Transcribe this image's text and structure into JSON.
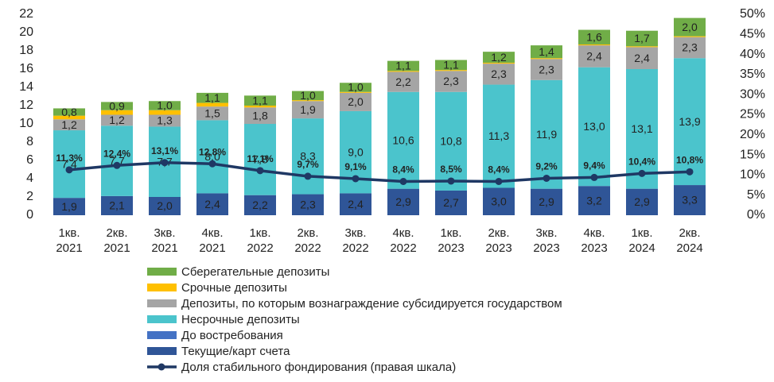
{
  "chart_data": {
    "type": "bar",
    "stacked": true,
    "categories": [
      "1кв. 2021",
      "2кв. 2021",
      "3кв. 2021",
      "4кв. 2021",
      "1кв. 2022",
      "2кв. 2022",
      "3кв. 2022",
      "4кв. 2022",
      "1кв. 2023",
      "2кв. 2023",
      "3кв. 2023",
      "4кв. 2023",
      "1кв. 2024",
      "2кв. 2024"
    ],
    "series": [
      {
        "name": "Текущие/карт счета",
        "color": "#2f5597",
        "values": [
          1.9,
          2.1,
          2.0,
          2.4,
          2.2,
          2.3,
          2.4,
          2.9,
          2.7,
          3.0,
          2.9,
          3.2,
          2.9,
          3.3
        ],
        "value_labels": [
          "1,9",
          "2,1",
          "2,0",
          "2,4",
          "2,2",
          "2,3",
          "2,4",
          "2,9",
          "2,7",
          "3,0",
          "2,9",
          "3,2",
          "2,9",
          "3,3"
        ]
      },
      {
        "name": "До востребования",
        "color": "#4472c4",
        "values": [
          0,
          0,
          0,
          0,
          0,
          0,
          0,
          0,
          0,
          0,
          0,
          0,
          0,
          0
        ]
      },
      {
        "name": "Несрочные депозиты",
        "color": "#4bc4cc",
        "values": [
          7.4,
          7.7,
          7.7,
          8.0,
          7.8,
          8.3,
          9.0,
          10.6,
          10.8,
          11.3,
          11.9,
          13.0,
          13.1,
          13.9
        ],
        "value_labels": [
          "7,4",
          "7,7",
          "7,7",
          "8,0",
          "7,8",
          "8,3",
          "9,0",
          "10,6",
          "10,8",
          "11,3",
          "11,9",
          "13,0",
          "13,1",
          "13,9"
        ]
      },
      {
        "name": "Депозиты, по которым вознаграждение субсидируется государством",
        "color": "#a5a5a5",
        "values": [
          1.2,
          1.2,
          1.3,
          1.5,
          1.8,
          1.9,
          2.0,
          2.2,
          2.3,
          2.3,
          2.3,
          2.4,
          2.4,
          2.3
        ],
        "value_labels": [
          "1,2",
          "1,2",
          "1,3",
          "1,5",
          "1,8",
          "1,9",
          "2,0",
          "2,2",
          "2,3",
          "2,3",
          "2,3",
          "2,4",
          "2,4",
          "2,3"
        ]
      },
      {
        "name": "Срочные депозиты",
        "color": "#ffc000",
        "values": [
          0.4,
          0.5,
          0.5,
          0.4,
          0.2,
          0.1,
          0.1,
          0.1,
          0.1,
          0.1,
          0.1,
          0.1,
          0.1,
          0.1
        ]
      },
      {
        "name": "Сберегательные депозиты",
        "color": "#70ad47",
        "values": [
          0.8,
          0.9,
          1.0,
          1.1,
          1.1,
          1.0,
          1.0,
          1.1,
          1.1,
          1.2,
          1.4,
          1.6,
          1.7,
          2.0
        ],
        "value_labels": [
          "0,8",
          "0,9",
          "1,0",
          "1,1",
          "1,1",
          "1,0",
          "1,0",
          "1,1",
          "1,1",
          "1,2",
          "1,4",
          "1,6",
          "1,7",
          "2,0"
        ]
      },
      {
        "name": "Доля стабильного фондирования (правая шкала)",
        "type": "line",
        "axis": "y2",
        "color": "#1f3864",
        "values": [
          11.3,
          12.4,
          13.1,
          12.8,
          11.1,
          9.7,
          9.1,
          8.4,
          8.5,
          8.4,
          9.2,
          9.4,
          10.4,
          10.8
        ],
        "value_labels": [
          "11,3%",
          "12,4%",
          "13,1%",
          "12,8%",
          "11,1%",
          "9,7%",
          "9,1%",
          "8,4%",
          "8,5%",
          "8,4%",
          "9,2%",
          "9,4%",
          "10,4%",
          "10,8%"
        ]
      }
    ],
    "ylim": [
      0,
      22
    ],
    "yticks": [
      0,
      2,
      4,
      6,
      8,
      10,
      12,
      14,
      16,
      18,
      20,
      22
    ],
    "y2lim": [
      0,
      50
    ],
    "y2ticks": [
      {
        "value": 0,
        "label": "0%"
      },
      {
        "value": 5,
        "label": "5%"
      },
      {
        "value": 10,
        "label": "10%"
      },
      {
        "value": 15,
        "label": "15%"
      },
      {
        "value": 20,
        "label": "20%"
      },
      {
        "value": 25,
        "label": "25%"
      },
      {
        "value": 30,
        "label": "30%"
      },
      {
        "value": 35,
        "label": "35%"
      },
      {
        "value": 40,
        "label": "40%"
      },
      {
        "value": 45,
        "label": "45%"
      },
      {
        "value": 50,
        "label": "50%"
      }
    ],
    "grid": false
  }
}
